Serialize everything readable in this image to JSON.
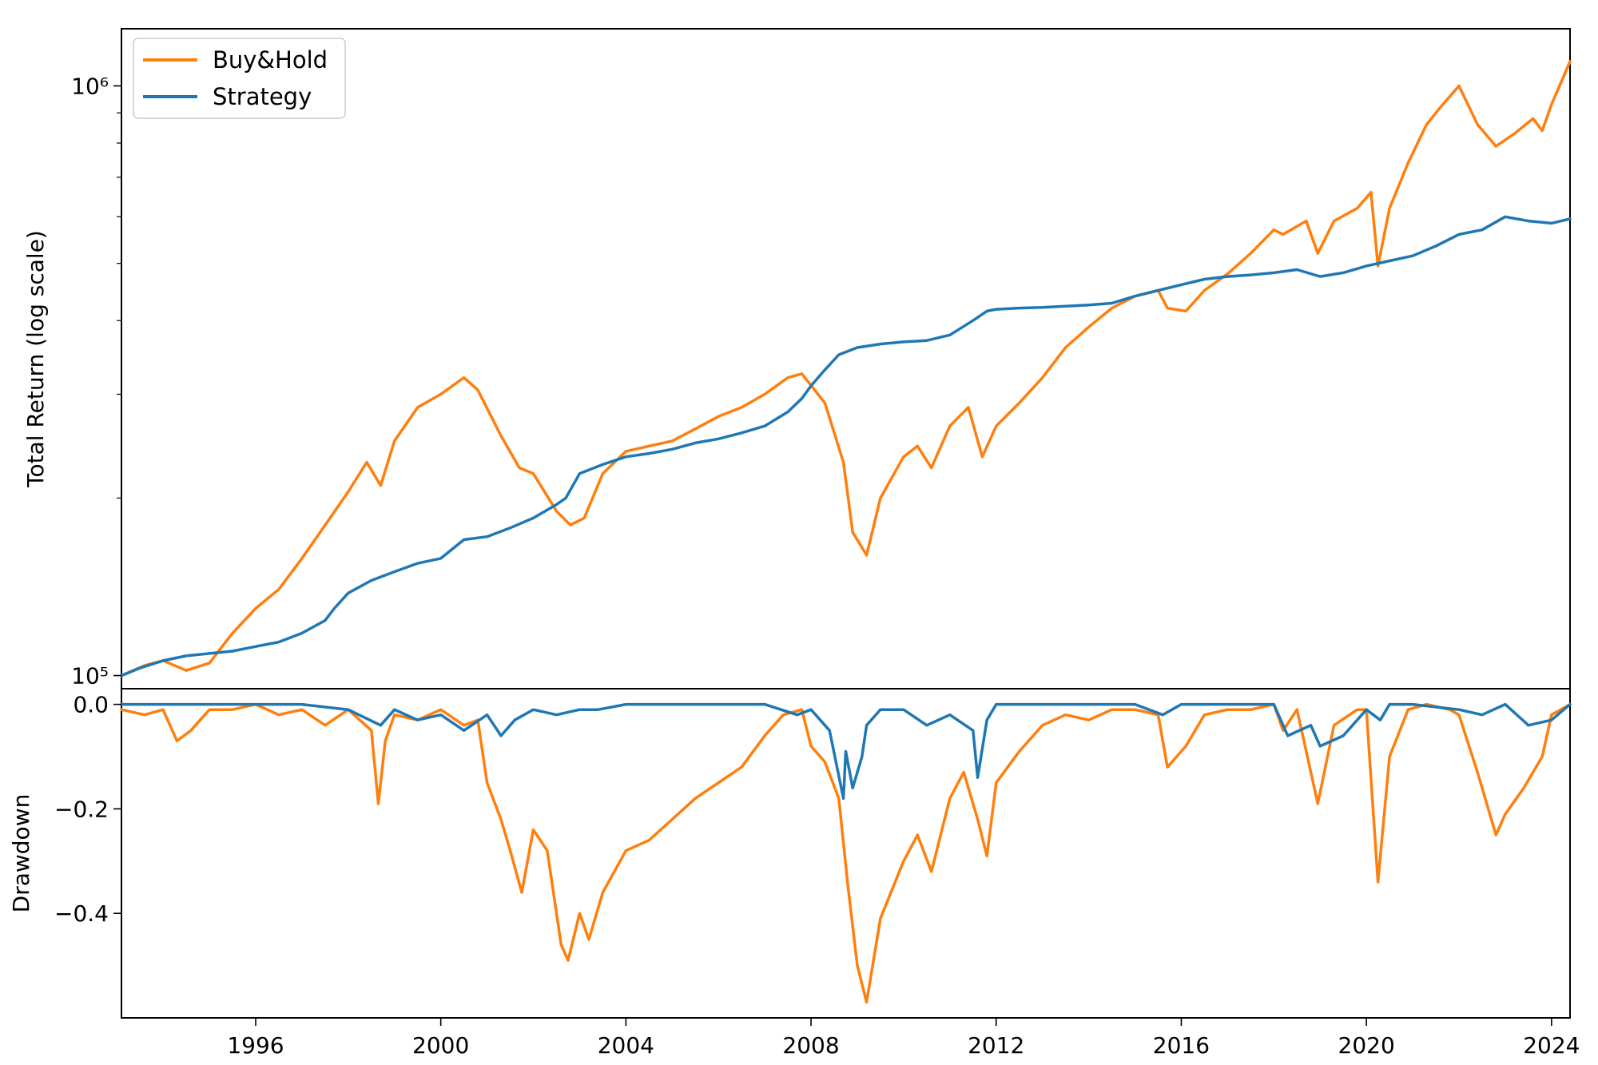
{
  "chart_data": [
    {
      "type": "line",
      "ylabel": "Total Return (log scale)",
      "yscale": "log",
      "ylim": [
        95000,
        1250000
      ],
      "xlim": [
        1993.1,
        2024.4
      ],
      "ytick_labels": [
        "10⁵",
        "10⁶"
      ],
      "yticks": [
        100000,
        1000000
      ],
      "legend": {
        "placement": "upper-left",
        "entries": [
          "Buy&Hold",
          "Strategy"
        ]
      },
      "grid": false,
      "series": [
        {
          "name": "Buy&Hold",
          "color": "#ff7f0e",
          "x": [
            1993.1,
            1993.6,
            1994.0,
            1994.5,
            1995.0,
            1995.5,
            1996.0,
            1996.5,
            1997.0,
            1997.5,
            1998.0,
            1998.4,
            1998.7,
            1999.0,
            1999.5,
            2000.0,
            2000.5,
            2000.8,
            2001.3,
            2001.7,
            2002.0,
            2002.5,
            2002.8,
            2003.1,
            2003.5,
            2004.0,
            2004.5,
            2005.0,
            2005.5,
            2006.0,
            2006.5,
            2007.0,
            2007.5,
            2007.8,
            2008.3,
            2008.7,
            2008.9,
            2009.2,
            2009.5,
            2010.0,
            2010.3,
            2010.6,
            2011.0,
            2011.4,
            2011.7,
            2012.0,
            2012.5,
            2013.0,
            2013.5,
            2014.0,
            2014.5,
            2015.0,
            2015.5,
            2015.7,
            2016.1,
            2016.5,
            2017.0,
            2017.5,
            2018.0,
            2018.2,
            2018.7,
            2018.95,
            2019.3,
            2019.8,
            2020.1,
            2020.25,
            2020.5,
            2020.9,
            2021.3,
            2021.6,
            2022.0,
            2022.4,
            2022.8,
            2023.2,
            2023.6,
            2023.8,
            2024.0,
            2024.4
          ],
          "y": [
            100000,
            104000,
            106000,
            102000,
            105000,
            118000,
            130000,
            140000,
            158000,
            180000,
            205000,
            230000,
            210000,
            250000,
            285000,
            300000,
            320000,
            305000,
            255000,
            225000,
            220000,
            190000,
            180000,
            185000,
            220000,
            240000,
            245000,
            250000,
            262000,
            275000,
            285000,
            300000,
            320000,
            325000,
            290000,
            230000,
            175000,
            160000,
            200000,
            235000,
            245000,
            225000,
            265000,
            285000,
            235000,
            265000,
            290000,
            320000,
            360000,
            390000,
            420000,
            440000,
            450000,
            420000,
            415000,
            450000,
            480000,
            520000,
            570000,
            560000,
            590000,
            520000,
            590000,
            620000,
            660000,
            495000,
            620000,
            740000,
            860000,
            920000,
            1000000,
            860000,
            790000,
            830000,
            880000,
            840000,
            930000,
            1100000
          ]
        },
        {
          "name": "Strategy",
          "color": "#1f77b4",
          "x": [
            1993.1,
            1993.5,
            1994.0,
            1994.5,
            1995.0,
            1995.5,
            1996.0,
            1996.5,
            1997.0,
            1997.5,
            1997.7,
            1998.0,
            1998.5,
            1999.0,
            1999.5,
            2000.0,
            2000.5,
            2001.0,
            2001.5,
            2002.0,
            2002.5,
            2002.7,
            2003.0,
            2003.5,
            2004.0,
            2004.5,
            2005.0,
            2005.5,
            2006.0,
            2006.5,
            2007.0,
            2007.5,
            2007.8,
            2008.0,
            2008.3,
            2008.6,
            2008.8,
            2009.0,
            2009.5,
            2010.0,
            2010.5,
            2011.0,
            2011.5,
            2011.8,
            2012.0,
            2012.5,
            2013.0,
            2013.5,
            2014.0,
            2014.5,
            2015.0,
            2015.5,
            2016.0,
            2016.5,
            2017.0,
            2017.5,
            2018.0,
            2018.5,
            2019.0,
            2019.5,
            2020.0,
            2020.5,
            2021.0,
            2021.5,
            2022.0,
            2022.5,
            2023.0,
            2023.5,
            2024.0,
            2024.4
          ],
          "y": [
            100000,
            103000,
            106000,
            108000,
            109000,
            110000,
            112000,
            114000,
            118000,
            124000,
            130000,
            138000,
            145000,
            150000,
            155000,
            158000,
            170000,
            172000,
            178000,
            185000,
            195000,
            200000,
            220000,
            228000,
            235000,
            238000,
            242000,
            248000,
            252000,
            258000,
            265000,
            280000,
            295000,
            310000,
            330000,
            350000,
            355000,
            360000,
            365000,
            368000,
            370000,
            378000,
            400000,
            415000,
            418000,
            420000,
            421000,
            423000,
            425000,
            428000,
            440000,
            450000,
            460000,
            470000,
            475000,
            478000,
            482000,
            488000,
            475000,
            482000,
            495000,
            505000,
            515000,
            535000,
            560000,
            570000,
            600000,
            590000,
            585000,
            595000
          ]
        }
      ]
    },
    {
      "type": "area",
      "ylabel": "Drawdown",
      "ylim": [
        -0.6,
        0.03
      ],
      "xlim": [
        1993.1,
        2024.4
      ],
      "yticks": [
        0.0,
        -0.2,
        -0.4
      ],
      "ytick_labels": [
        "0.0",
        "−0.2",
        "−0.4"
      ],
      "xticks": [
        1996,
        2000,
        2004,
        2008,
        2012,
        2016,
        2020,
        2024
      ],
      "xtick_labels": [
        "1996",
        "2000",
        "2004",
        "2008",
        "2012",
        "2016",
        "2020",
        "2024"
      ],
      "grid": false,
      "series": [
        {
          "name": "Buy&Hold",
          "color": "#ff7f0e",
          "x": [
            1993.1,
            1993.6,
            1994.0,
            1994.3,
            1994.6,
            1995.0,
            1995.5,
            1996.0,
            1996.5,
            1997.0,
            1997.5,
            1998.0,
            1998.5,
            1998.65,
            1998.8,
            1999.0,
            1999.5,
            2000.0,
            2000.5,
            2000.8,
            2001.0,
            2001.3,
            2001.5,
            2001.75,
            2002.0,
            2002.3,
            2002.6,
            2002.75,
            2003.0,
            2003.2,
            2003.5,
            2004.0,
            2004.5,
            2005.0,
            2005.5,
            2006.0,
            2006.5,
            2007.0,
            2007.4,
            2007.8,
            2008.0,
            2008.3,
            2008.6,
            2008.8,
            2009.0,
            2009.2,
            2009.5,
            2010.0,
            2010.3,
            2010.6,
            2011.0,
            2011.3,
            2011.6,
            2011.8,
            2012.0,
            2012.5,
            2013.0,
            2013.5,
            2014.0,
            2014.5,
            2015.0,
            2015.5,
            2015.7,
            2016.1,
            2016.5,
            2017.0,
            2017.5,
            2018.0,
            2018.2,
            2018.5,
            2018.95,
            2019.3,
            2019.8,
            2020.0,
            2020.25,
            2020.5,
            2020.9,
            2021.3,
            2021.8,
            2022.0,
            2022.4,
            2022.8,
            2023.0,
            2023.4,
            2023.8,
            2024.0,
            2024.4
          ],
          "y": [
            -0.01,
            -0.02,
            -0.01,
            -0.07,
            -0.05,
            -0.01,
            -0.01,
            0.0,
            -0.02,
            -0.01,
            -0.04,
            -0.01,
            -0.05,
            -0.19,
            -0.07,
            -0.02,
            -0.03,
            -0.01,
            -0.04,
            -0.03,
            -0.15,
            -0.22,
            -0.28,
            -0.36,
            -0.24,
            -0.28,
            -0.46,
            -0.49,
            -0.4,
            -0.45,
            -0.36,
            -0.28,
            -0.26,
            -0.22,
            -0.18,
            -0.15,
            -0.12,
            -0.06,
            -0.02,
            -0.01,
            -0.08,
            -0.11,
            -0.18,
            -0.35,
            -0.5,
            -0.57,
            -0.41,
            -0.3,
            -0.25,
            -0.32,
            -0.18,
            -0.13,
            -0.22,
            -0.29,
            -0.15,
            -0.09,
            -0.04,
            -0.02,
            -0.03,
            -0.01,
            -0.01,
            -0.02,
            -0.12,
            -0.08,
            -0.02,
            -0.01,
            -0.01,
            0.0,
            -0.05,
            -0.01,
            -0.19,
            -0.04,
            -0.01,
            -0.01,
            -0.34,
            -0.1,
            -0.01,
            0.0,
            -0.01,
            -0.02,
            -0.13,
            -0.25,
            -0.21,
            -0.16,
            -0.1,
            -0.02,
            0.0
          ]
        },
        {
          "name": "Strategy",
          "color": "#1f77b4",
          "x": [
            1993.1,
            1995.0,
            1996.0,
            1997.0,
            1998.0,
            1998.7,
            1999.0,
            1999.5,
            2000.0,
            2000.5,
            2001.0,
            2001.3,
            2001.6,
            2002.0,
            2002.5,
            2003.0,
            2003.4,
            2004.0,
            2005.0,
            2006.0,
            2007.0,
            2007.7,
            2008.0,
            2008.4,
            2008.7,
            2008.75,
            2008.9,
            2009.1,
            2009.2,
            2009.5,
            2010.0,
            2010.5,
            2011.0,
            2011.5,
            2011.6,
            2011.8,
            2012.0,
            2013.0,
            2014.0,
            2015.0,
            2015.6,
            2016.0,
            2017.0,
            2018.0,
            2018.3,
            2018.8,
            2019.0,
            2019.5,
            2020.0,
            2020.3,
            2020.5,
            2021.0,
            2022.0,
            2022.5,
            2023.0,
            2023.5,
            2024.0,
            2024.4
          ],
          "y": [
            0.0,
            0.0,
            0.0,
            0.0,
            -0.01,
            -0.04,
            -0.01,
            -0.03,
            -0.02,
            -0.05,
            -0.02,
            -0.06,
            -0.03,
            -0.01,
            -0.02,
            -0.01,
            -0.01,
            0.0,
            0.0,
            0.0,
            0.0,
            -0.02,
            -0.01,
            -0.05,
            -0.18,
            -0.09,
            -0.16,
            -0.1,
            -0.04,
            -0.01,
            -0.01,
            -0.04,
            -0.02,
            -0.05,
            -0.14,
            -0.03,
            0.0,
            0.0,
            0.0,
            0.0,
            -0.02,
            0.0,
            0.0,
            0.0,
            -0.06,
            -0.04,
            -0.08,
            -0.06,
            -0.01,
            -0.03,
            0.0,
            0.0,
            -0.01,
            -0.02,
            0.0,
            -0.04,
            -0.03,
            0.0
          ]
        }
      ]
    }
  ]
}
